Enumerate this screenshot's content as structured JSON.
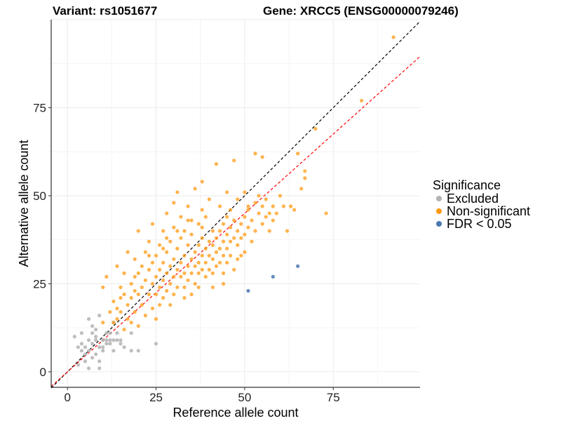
{
  "chart_data": {
    "type": "scatter",
    "title_left": "Variant: rs1051677",
    "title_right": "Gene: XRCC5 (ENSG00000079246)",
    "xlabel": "Reference allele count",
    "ylabel": "Alternative allele count",
    "xlim": [
      -4.6,
      99.5
    ],
    "ylim": [
      -4.4,
      100
    ],
    "xticks": [
      0,
      25,
      50,
      75
    ],
    "yticks": [
      0,
      25,
      50,
      75
    ],
    "grid": true,
    "legend": {
      "title": "Significance",
      "placement": "right",
      "entries": [
        {
          "label": "Excluded",
          "color": "#b3b3b3"
        },
        {
          "label": "Non-significant",
          "color": "#ff9912"
        },
        {
          "label": "FDR < 0.05",
          "color": "#4a78b0"
        }
      ]
    },
    "reference_lines": [
      {
        "name": "identity",
        "slope": 1,
        "intercept": 0,
        "color": "#000000",
        "dashed": true
      },
      {
        "name": "fit",
        "slope": 0.9,
        "intercept": 0,
        "color": "#ff0000",
        "dashed": true
      }
    ],
    "series": [
      {
        "name": "Excluded",
        "color": "#b3b3b3",
        "points": [
          [
            2,
            10
          ],
          [
            3,
            7
          ],
          [
            4,
            6
          ],
          [
            4,
            8
          ],
          [
            5,
            5
          ],
          [
            5,
            7
          ],
          [
            5,
            3
          ],
          [
            6,
            6
          ],
          [
            6,
            9
          ],
          [
            6,
            15
          ],
          [
            7,
            13
          ],
          [
            7,
            11
          ],
          [
            7,
            4
          ],
          [
            7,
            8
          ],
          [
            8,
            5
          ],
          [
            8,
            9
          ],
          [
            8,
            10
          ],
          [
            8,
            12
          ],
          [
            9,
            7
          ],
          [
            9,
            3
          ],
          [
            9,
            1
          ],
          [
            10,
            9
          ],
          [
            10,
            7
          ],
          [
            10,
            6
          ],
          [
            11,
            9
          ],
          [
            11,
            11
          ],
          [
            11,
            8
          ],
          [
            12,
            9
          ],
          [
            12,
            11
          ],
          [
            12,
            8
          ],
          [
            13,
            6
          ],
          [
            13,
            9
          ],
          [
            14,
            9
          ],
          [
            15,
            9
          ],
          [
            15,
            8
          ],
          [
            16,
            7
          ],
          [
            18,
            6
          ],
          [
            18,
            11
          ],
          [
            20,
            6
          ],
          [
            25,
            8
          ],
          [
            3,
            2
          ],
          [
            6,
            1
          ],
          [
            4,
            11
          ],
          [
            9,
            16
          ],
          [
            14,
            11
          ],
          [
            13,
            14
          ]
        ]
      },
      {
        "name": "Non-significant",
        "color": "#ff9912",
        "points": [
          [
            10,
            14
          ],
          [
            10,
            24
          ],
          [
            11,
            27
          ],
          [
            12,
            17
          ],
          [
            13,
            20
          ],
          [
            13,
            14
          ],
          [
            14,
            18
          ],
          [
            14,
            15
          ],
          [
            14,
            30
          ],
          [
            15,
            24
          ],
          [
            15,
            21
          ],
          [
            16,
            12
          ],
          [
            16,
            22
          ],
          [
            16,
            28
          ],
          [
            17,
            19
          ],
          [
            17,
            15
          ],
          [
            17,
            34
          ],
          [
            18,
            25
          ],
          [
            18,
            21
          ],
          [
            18,
            14
          ],
          [
            19,
            27
          ],
          [
            19,
            32
          ],
          [
            19,
            17
          ],
          [
            20,
            22
          ],
          [
            20,
            28
          ],
          [
            20,
            40
          ],
          [
            20,
            13
          ],
          [
            21,
            30
          ],
          [
            21,
            24
          ],
          [
            21,
            19
          ],
          [
            22,
            26
          ],
          [
            22,
            34
          ],
          [
            22,
            16
          ],
          [
            23,
            29
          ],
          [
            23,
            22
          ],
          [
            23,
            37
          ],
          [
            24,
            25
          ],
          [
            24,
            31
          ],
          [
            24,
            18
          ],
          [
            24,
            42
          ],
          [
            25,
            27
          ],
          [
            25,
            22
          ],
          [
            25,
            33
          ],
          [
            25,
            15
          ],
          [
            26,
            29
          ],
          [
            26,
            36
          ],
          [
            26,
            24
          ],
          [
            26,
            19
          ],
          [
            27,
            31
          ],
          [
            27,
            26
          ],
          [
            27,
            40
          ],
          [
            27,
            21
          ],
          [
            28,
            28
          ],
          [
            28,
            34
          ],
          [
            28,
            23
          ],
          [
            28,
            45
          ],
          [
            29,
            30
          ],
          [
            29,
            25
          ],
          [
            29,
            37
          ],
          [
            29,
            19
          ],
          [
            30,
            32
          ],
          [
            30,
            27
          ],
          [
            30,
            41
          ],
          [
            30,
            22
          ],
          [
            30,
            48
          ],
          [
            31,
            29
          ],
          [
            31,
            35
          ],
          [
            31,
            24
          ],
          [
            31,
            51
          ],
          [
            32,
            31
          ],
          [
            32,
            27
          ],
          [
            32,
            38
          ],
          [
            32,
            44
          ],
          [
            33,
            33
          ],
          [
            33,
            28
          ],
          [
            33,
            24
          ],
          [
            33,
            40
          ],
          [
            34,
            30
          ],
          [
            34,
            36
          ],
          [
            34,
            26
          ],
          [
            34,
            47
          ],
          [
            35,
            32
          ],
          [
            35,
            28
          ],
          [
            35,
            39
          ],
          [
            35,
            43
          ],
          [
            35,
            22
          ],
          [
            36,
            34
          ],
          [
            36,
            30
          ],
          [
            36,
            25
          ],
          [
            36,
            52
          ],
          [
            37,
            36
          ],
          [
            37,
            31
          ],
          [
            37,
            28
          ],
          [
            37,
            42
          ],
          [
            38,
            33
          ],
          [
            38,
            29
          ],
          [
            38,
            38
          ],
          [
            38,
            54
          ],
          [
            38,
            46
          ],
          [
            39,
            35
          ],
          [
            39,
            31
          ],
          [
            39,
            27
          ],
          [
            39,
            44
          ],
          [
            40,
            37
          ],
          [
            40,
            33
          ],
          [
            40,
            29
          ],
          [
            40,
            49
          ],
          [
            41,
            36
          ],
          [
            41,
            32
          ],
          [
            41,
            40
          ],
          [
            41,
            24
          ],
          [
            42,
            38
          ],
          [
            42,
            34
          ],
          [
            42,
            30
          ],
          [
            42,
            59
          ],
          [
            43,
            40
          ],
          [
            43,
            35
          ],
          [
            43,
            31
          ],
          [
            43,
            47
          ],
          [
            44,
            37
          ],
          [
            44,
            33
          ],
          [
            44,
            42
          ],
          [
            44,
            28
          ],
          [
            45,
            39
          ],
          [
            45,
            35
          ],
          [
            45,
            51
          ],
          [
            45,
            31
          ],
          [
            46,
            41
          ],
          [
            46,
            37
          ],
          [
            46,
            33
          ],
          [
            46,
            46
          ],
          [
            47,
            43
          ],
          [
            47,
            38
          ],
          [
            47,
            60
          ],
          [
            47,
            29
          ],
          [
            48,
            40
          ],
          [
            48,
            36
          ],
          [
            48,
            49
          ],
          [
            49,
            42
          ],
          [
            49,
            38
          ],
          [
            49,
            33
          ],
          [
            50,
            44
          ],
          [
            50,
            39
          ],
          [
            50,
            51
          ],
          [
            50,
            34
          ],
          [
            51,
            46
          ],
          [
            51,
            41
          ],
          [
            51,
            47
          ],
          [
            52,
            43
          ],
          [
            52,
            37
          ],
          [
            53,
            48
          ],
          [
            53,
            62
          ],
          [
            53,
            40
          ],
          [
            54,
            45
          ],
          [
            54,
            50
          ],
          [
            55,
            42
          ],
          [
            55,
            61
          ],
          [
            55,
            47
          ],
          [
            56,
            49
          ],
          [
            56,
            44
          ],
          [
            57,
            45
          ],
          [
            57,
            40
          ],
          [
            58,
            47
          ],
          [
            58,
            43
          ],
          [
            59,
            45
          ],
          [
            60,
            50
          ],
          [
            61,
            47
          ],
          [
            62,
            40
          ],
          [
            63,
            47
          ],
          [
            64,
            46
          ],
          [
            65,
            62
          ],
          [
            66,
            52
          ],
          [
            67,
            57
          ],
          [
            67,
            55
          ],
          [
            70,
            69
          ],
          [
            73,
            45
          ],
          [
            83,
            77
          ],
          [
            92,
            95
          ],
          [
            15,
            17
          ],
          [
            19,
            23
          ],
          [
            23,
            33
          ],
          [
            28,
            38
          ],
          [
            33,
            21
          ],
          [
            37,
            24
          ],
          [
            41,
            28
          ],
          [
            44,
            25
          ],
          [
            27,
            35
          ],
          [
            31,
            40
          ],
          [
            34,
            43
          ],
          [
            38,
            41
          ],
          [
            45,
            44
          ],
          [
            48,
            32
          ]
        ]
      },
      {
        "name": "FDR < 0.05",
        "color": "#4a78b0",
        "points": [
          [
            51,
            23
          ],
          [
            58,
            27
          ],
          [
            65,
            30
          ]
        ]
      }
    ]
  }
}
